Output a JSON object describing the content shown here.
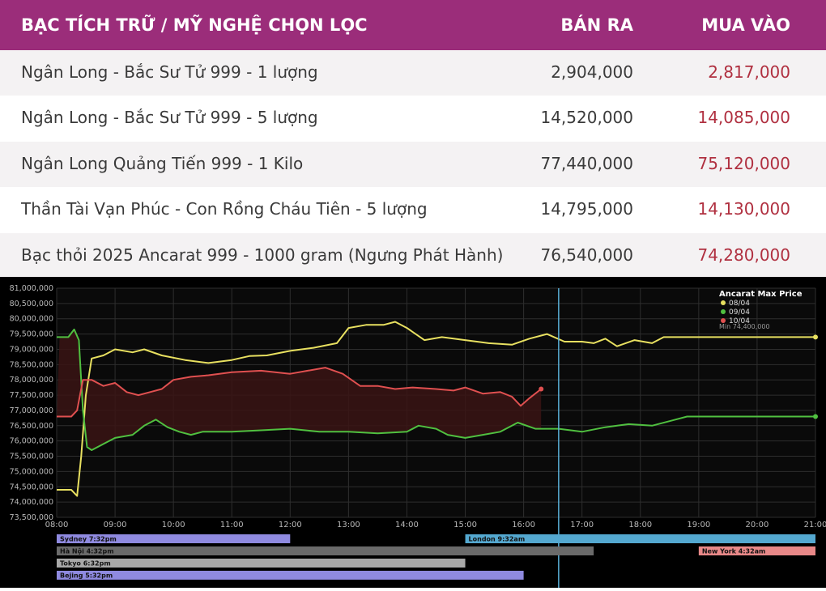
{
  "table": {
    "header": {
      "name": "BẠC TÍCH TRỮ / MỸ NGHỆ CHỌN LỌC",
      "sell": "BÁN RA",
      "buy": "MUA VÀO"
    },
    "rows": [
      {
        "name": "Ngân Long - Bắc Sư Tử  999 - 1 lượng",
        "sell": "2,904,000",
        "buy": "2,817,000"
      },
      {
        "name": "Ngân Long - Bắc Sư Tử  999 - 5 lượng",
        "sell": "14,520,000",
        "buy": "14,085,000"
      },
      {
        "name": "Ngân Long Quảng Tiến 999 - 1 Kilo",
        "sell": "77,440,000",
        "buy": "75,120,000"
      },
      {
        "name": "Thần Tài Vạn Phúc - Con Rồng Cháu Tiên - 5 lượng",
        "sell": "14,795,000",
        "buy": "14,130,000"
      },
      {
        "name": "Bạc thỏi 2025 Ancarat 999 - 1000 gram (Ngưng Phát Hành)",
        "sell": "76,540,000",
        "buy": "74,280,000"
      }
    ]
  },
  "chart_data": {
    "type": "line",
    "title": "",
    "legend": {
      "title": "Ancarat Max Price",
      "position": "top-right",
      "min_label": "Min 74,400,000"
    },
    "xlim": [
      8,
      21
    ],
    "ylim": [
      73500000,
      81000000
    ],
    "x_ticks": [
      "08:00",
      "09:00",
      "10:00",
      "11:00",
      "12:00",
      "13:00",
      "14:00",
      "15:00",
      "16:00",
      "17:00",
      "18:00",
      "19:00",
      "20:00",
      "21:00"
    ],
    "y_ticks": [
      "73,500,000",
      "74,000,000",
      "74,500,000",
      "75,000,000",
      "75,500,000",
      "76,000,000",
      "76,500,000",
      "77,000,000",
      "77,500,000",
      "78,000,000",
      "78,500,000",
      "79,000,000",
      "79,500,000",
      "80,000,000",
      "80,500,000",
      "81,000,000"
    ],
    "cursor_x": 16.6,
    "series": [
      {
        "name": "08/04",
        "color": "#e8e060",
        "points": [
          [
            8.0,
            74400000
          ],
          [
            8.25,
            74400000
          ],
          [
            8.35,
            74200000
          ],
          [
            8.42,
            75500000
          ],
          [
            8.5,
            77500000
          ],
          [
            8.6,
            78700000
          ],
          [
            8.8,
            78800000
          ],
          [
            9.0,
            79000000
          ],
          [
            9.3,
            78900000
          ],
          [
            9.5,
            79000000
          ],
          [
            9.8,
            78800000
          ],
          [
            10.2,
            78650000
          ],
          [
            10.6,
            78550000
          ],
          [
            11.0,
            78650000
          ],
          [
            11.3,
            78780000
          ],
          [
            11.6,
            78800000
          ],
          [
            12.0,
            78950000
          ],
          [
            12.4,
            79050000
          ],
          [
            12.8,
            79200000
          ],
          [
            13.0,
            79700000
          ],
          [
            13.3,
            79800000
          ],
          [
            13.6,
            79800000
          ],
          [
            13.8,
            79900000
          ],
          [
            14.0,
            79700000
          ],
          [
            14.3,
            79300000
          ],
          [
            14.6,
            79400000
          ],
          [
            15.0,
            79300000
          ],
          [
            15.4,
            79200000
          ],
          [
            15.8,
            79150000
          ],
          [
            16.1,
            79350000
          ],
          [
            16.4,
            79500000
          ],
          [
            16.7,
            79250000
          ],
          [
            17.0,
            79250000
          ],
          [
            17.2,
            79200000
          ],
          [
            17.4,
            79350000
          ],
          [
            17.6,
            79100000
          ],
          [
            17.9,
            79300000
          ],
          [
            18.2,
            79200000
          ],
          [
            18.4,
            79400000
          ],
          [
            21.0,
            79400000
          ]
        ]
      },
      {
        "name": "09/04",
        "color": "#50c040",
        "points": [
          [
            8.0,
            79400000
          ],
          [
            8.2,
            79400000
          ],
          [
            8.3,
            79650000
          ],
          [
            8.38,
            79300000
          ],
          [
            8.45,
            77000000
          ],
          [
            8.52,
            75800000
          ],
          [
            8.6,
            75700000
          ],
          [
            8.8,
            75900000
          ],
          [
            9.0,
            76100000
          ],
          [
            9.3,
            76200000
          ],
          [
            9.5,
            76500000
          ],
          [
            9.7,
            76700000
          ],
          [
            9.9,
            76450000
          ],
          [
            10.1,
            76300000
          ],
          [
            10.3,
            76200000
          ],
          [
            10.5,
            76300000
          ],
          [
            11.0,
            76300000
          ],
          [
            11.5,
            76350000
          ],
          [
            12.0,
            76400000
          ],
          [
            12.5,
            76300000
          ],
          [
            13.0,
            76300000
          ],
          [
            13.5,
            76250000
          ],
          [
            14.0,
            76300000
          ],
          [
            14.2,
            76500000
          ],
          [
            14.5,
            76400000
          ],
          [
            14.7,
            76200000
          ],
          [
            15.0,
            76100000
          ],
          [
            15.3,
            76200000
          ],
          [
            15.6,
            76300000
          ],
          [
            15.9,
            76600000
          ],
          [
            16.2,
            76400000
          ],
          [
            16.6,
            76400000
          ],
          [
            17.0,
            76300000
          ],
          [
            17.4,
            76450000
          ],
          [
            17.8,
            76550000
          ],
          [
            18.2,
            76500000
          ],
          [
            18.6,
            76700000
          ],
          [
            18.8,
            76800000
          ],
          [
            21.0,
            76800000
          ]
        ]
      },
      {
        "name": "10/04",
        "color": "#e05050",
        "points": [
          [
            8.0,
            76800000
          ],
          [
            8.25,
            76800000
          ],
          [
            8.35,
            77000000
          ],
          [
            8.45,
            78000000
          ],
          [
            8.6,
            78000000
          ],
          [
            8.8,
            77800000
          ],
          [
            9.0,
            77900000
          ],
          [
            9.2,
            77600000
          ],
          [
            9.4,
            77500000
          ],
          [
            9.6,
            77600000
          ],
          [
            9.8,
            77700000
          ],
          [
            10.0,
            78000000
          ],
          [
            10.3,
            78100000
          ],
          [
            10.6,
            78150000
          ],
          [
            11.0,
            78250000
          ],
          [
            11.5,
            78300000
          ],
          [
            12.0,
            78200000
          ],
          [
            12.3,
            78300000
          ],
          [
            12.6,
            78400000
          ],
          [
            12.9,
            78200000
          ],
          [
            13.2,
            77800000
          ],
          [
            13.5,
            77800000
          ],
          [
            13.8,
            77700000
          ],
          [
            14.1,
            77750000
          ],
          [
            14.5,
            77700000
          ],
          [
            14.8,
            77650000
          ],
          [
            15.0,
            77750000
          ],
          [
            15.3,
            77550000
          ],
          [
            15.6,
            77600000
          ],
          [
            15.8,
            77450000
          ],
          [
            15.95,
            77150000
          ],
          [
            16.1,
            77400000
          ],
          [
            16.3,
            77700000
          ]
        ]
      }
    ],
    "sessions": [
      {
        "name": "Sydney 7:32pm",
        "start": 8.0,
        "end": 12.0,
        "row": 0,
        "color": "#8f8ae0"
      },
      {
        "name": "London 9:32am",
        "start": 15.0,
        "end": 21.0,
        "row": 0,
        "color": "#54a8d0"
      },
      {
        "name": "Hà Nội 4:32pm",
        "start": 8.0,
        "end": 17.2,
        "row": 1,
        "color": "#6a6a6a"
      },
      {
        "name": "New York 4:32am",
        "start": 19.0,
        "end": 21.0,
        "row": 1,
        "color": "#e88888"
      },
      {
        "name": "Tokyo 6:32pm",
        "start": 8.0,
        "end": 15.0,
        "row": 2,
        "color": "#a8a8a8"
      },
      {
        "name": "Bejing 5:32pm",
        "start": 8.0,
        "end": 16.0,
        "row": 3,
        "color": "#8f8ae0"
      }
    ]
  }
}
